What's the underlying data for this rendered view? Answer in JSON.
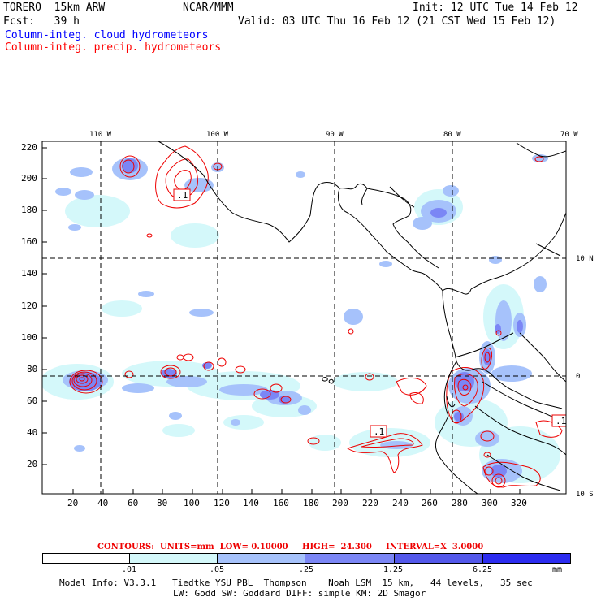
{
  "header": {
    "model": "TORERO  15km ARW",
    "center": "NCAR/MMM",
    "init": "Init: 12 UTC Tue 14 Feb 12",
    "fcst": "Fcst:   39 h",
    "valid": "Valid: 03 UTC Thu 16 Feb 12 (21 CST Wed 15 Feb 12)",
    "field1": "Column-integ. cloud hydrometeors",
    "field2": "Column-integ. precip. hydrometeors",
    "field1_color": "#0000ff",
    "field2_color": "#ff0000"
  },
  "axes": {
    "top_lon": [
      "110 W",
      "100 W",
      "90 W",
      "80 W",
      "70 W"
    ],
    "left_y": [
      "220",
      "200",
      "180",
      "160",
      "140",
      "120",
      "100",
      "80",
      "60",
      "40",
      "20"
    ],
    "bottom_x": [
      "20",
      "40",
      "60",
      "80",
      "100",
      "120",
      "140",
      "160",
      "180",
      "200",
      "220",
      "240",
      "260",
      "280",
      "300",
      "320"
    ],
    "right_lat": [
      "10 N",
      "0",
      "10 S"
    ]
  },
  "contour_labels": [
    ".1",
    ".1",
    ".1"
  ],
  "contours_info": {
    "label": "CONTOURS:  UNITS=mm  LOW= 0.10000     HIGH=  24.300     INTERVAL=X  3.0000"
  },
  "colorbar": {
    "unit": "mm",
    "ticks": [
      ".01",
      ".05",
      ".25",
      "1.25",
      "6.25"
    ],
    "colors": [
      "#ffffff",
      "#d4f8fa",
      "#a6c2fb",
      "#7b86f5",
      "#5358ea",
      "#2c2cf0"
    ]
  },
  "footer": {
    "line1": "Model Info: V3.3.1   Tiedtke YSU PBL  Thompson    Noah LSM  15 km,   44 levels,   35 sec",
    "line2": "LW: Godd SW: Goddard DIFF: simple KM: 2D Smagor"
  }
}
